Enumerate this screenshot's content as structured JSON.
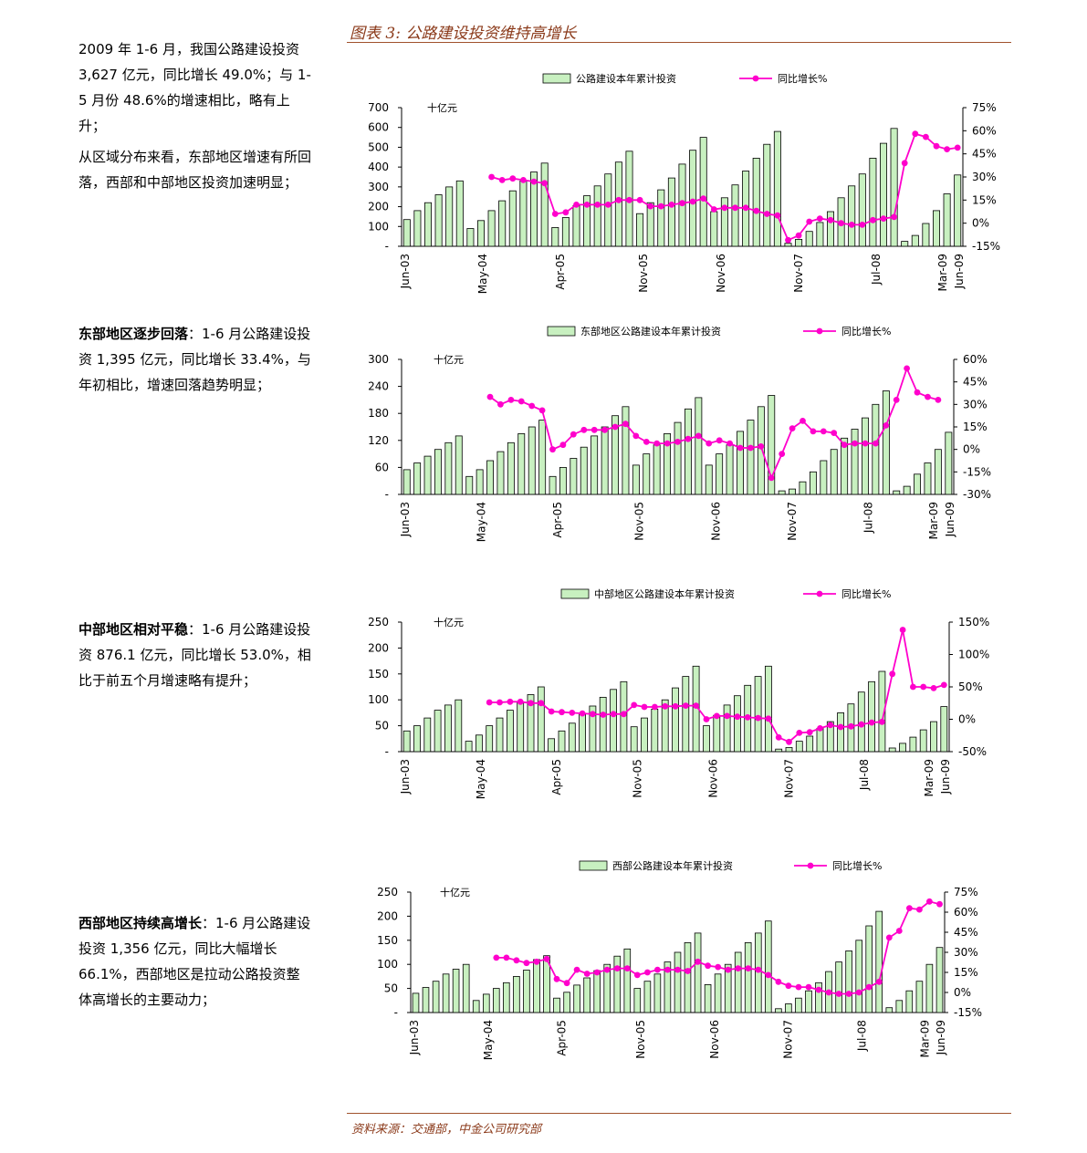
{
  "figure_title": "图表 3: 公路建设投资维持高增长",
  "source": "资料来源：交通部，中金公司研究部",
  "paragraphs": [
    {
      "lines": [
        "2009 年 1-6 月，我国公路建设投资 3,627 亿元，同比增长 49.0%；与 1-5 月份 48.6%的增速相比，略有上升；",
        "从区域分布来看，东部地区增速有所回落，西部和中部地区投资加速明显；"
      ]
    },
    {
      "bold": "东部地区逐步回落",
      "text": "：1-6 月公路建设投资 1,395 亿元，同比增长 33.4%，与年初相比，增速回落趋势明显；"
    },
    {
      "bold": "中部地区相对平稳",
      "text": "：1-6 月公路建设投资 876.1 亿元，同比增长 53.0%，相比于前五个月增速略有提升；"
    },
    {
      "bold": "西部地区持续高增长",
      "text": "：1-6 月公路建设投资 1,356 亿元，同比大幅增长 66.1%，西部地区是拉动公路投资整体高增长的主要动力；"
    }
  ],
  "colors": {
    "bar_fill": "#c8f0c0",
    "bar_stroke": "#000000",
    "line": "#ff00cc",
    "accent": "#8b3a1a"
  },
  "chart_data": [
    {
      "type": "bar",
      "legend_bar": "公路建设本年累计投资",
      "legend_line": "同比增长%",
      "unit_label": "十亿元",
      "x_ticks": [
        "Jun-03",
        "May-04",
        "Apr-05",
        "Nov-05",
        "Nov-06",
        "Nov-07",
        "Jul-08",
        "Mar-09",
        "Jun-09"
      ],
      "left_ticks": [
        "700",
        "600",
        "500",
        "400",
        "300",
        "200",
        "100",
        "-"
      ],
      "right_ticks": [
        "75%",
        "60%",
        "45%",
        "30%",
        "15%",
        "0%",
        "-15%"
      ],
      "y_left": [
        0,
        700
      ],
      "y_right": [
        -15,
        75
      ],
      "bars": [
        135,
        180,
        220,
        260,
        300,
        330,
        90,
        130,
        180,
        230,
        280,
        330,
        375,
        420,
        95,
        145,
        205,
        255,
        305,
        365,
        425,
        480,
        165,
        220,
        285,
        345,
        415,
        485,
        550,
        175,
        245,
        310,
        380,
        445,
        515,
        580,
        15,
        35,
        75,
        120,
        175,
        245,
        305,
        365,
        445,
        520,
        595,
        25,
        55,
        115,
        180,
        265,
        360
      ],
      "growth": [
        null,
        null,
        null,
        null,
        null,
        null,
        null,
        null,
        30,
        28,
        29,
        28,
        27,
        26,
        6,
        7,
        12,
        12,
        12,
        12,
        15,
        15,
        15,
        11,
        11,
        12,
        13,
        14,
        16,
        9,
        10,
        10,
        10,
        8,
        6,
        5,
        -11,
        -8,
        1,
        3,
        2,
        0,
        -1,
        -1,
        2,
        3,
        4,
        39,
        58,
        56,
        50,
        48,
        49
      ]
    },
    {
      "type": "bar",
      "legend_bar": "东部地区公路建设本年累计投资",
      "legend_line": "同比增长%",
      "unit_label": "十亿元",
      "x_ticks": [
        "Jun-03",
        "May-04",
        "Apr-05",
        "Nov-05",
        "Nov-06",
        "Nov-07",
        "Jul-08",
        "Mar-09",
        "Jun-09"
      ],
      "left_ticks": [
        "300",
        "240",
        "180",
        "120",
        "60",
        "-"
      ],
      "right_ticks": [
        "60%",
        "45%",
        "30%",
        "15%",
        "0%",
        "-15%",
        "-30%"
      ],
      "y_left": [
        0,
        300
      ],
      "y_right": [
        -30,
        60
      ],
      "bars": [
        55,
        70,
        85,
        100,
        115,
        130,
        40,
        55,
        75,
        95,
        115,
        135,
        150,
        165,
        40,
        60,
        80,
        105,
        130,
        150,
        175,
        195,
        65,
        90,
        110,
        135,
        160,
        190,
        215,
        65,
        90,
        110,
        140,
        165,
        195,
        220,
        8,
        12,
        28,
        50,
        75,
        100,
        125,
        145,
        170,
        200,
        230,
        8,
        18,
        45,
        70,
        100,
        138
      ],
      "growth": [
        null,
        null,
        null,
        null,
        null,
        null,
        null,
        null,
        35,
        30,
        33,
        32,
        29,
        26,
        0,
        3,
        10,
        13,
        13,
        13,
        15,
        17,
        9,
        5,
        4,
        4,
        5,
        7,
        9,
        4,
        6,
        4,
        1,
        1,
        2,
        -19,
        -3,
        14,
        19,
        12,
        12,
        11,
        3,
        4,
        4,
        4,
        16,
        33,
        54,
        38,
        35,
        33
      ]
    },
    {
      "type": "bar",
      "legend_bar": "中部地区公路建设本年累计投资",
      "legend_line": "同比增长%",
      "unit_label": "十亿元",
      "x_ticks": [
        "Jun-03",
        "May-04",
        "Apr-05",
        "Nov-05",
        "Nov-06",
        "Nov-07",
        "Jul-08",
        "Mar-09",
        "Jun-09"
      ],
      "left_ticks": [
        "250",
        "200",
        "150",
        "100",
        "50",
        "-"
      ],
      "right_ticks": [
        "150%",
        "100%",
        "50%",
        "0%",
        "-50%"
      ],
      "y_left": [
        0,
        250
      ],
      "y_right": [
        -50,
        150
      ],
      "bars": [
        40,
        50,
        65,
        80,
        90,
        100,
        20,
        32,
        50,
        65,
        80,
        95,
        110,
        125,
        25,
        40,
        55,
        72,
        88,
        105,
        120,
        135,
        48,
        65,
        82,
        100,
        123,
        145,
        165,
        50,
        70,
        90,
        108,
        128,
        145,
        165,
        5,
        8,
        20,
        30,
        45,
        58,
        75,
        92,
        115,
        135,
        155,
        7,
        16,
        28,
        42,
        58,
        87
      ],
      "growth": [
        null,
        null,
        null,
        null,
        null,
        null,
        null,
        null,
        26,
        26,
        27,
        27,
        25,
        25,
        12,
        11,
        10,
        9,
        8,
        7,
        8,
        8,
        22,
        19,
        19,
        20,
        20,
        21,
        21,
        0,
        5,
        5,
        4,
        3,
        2,
        1,
        -28,
        -35,
        -21,
        -20,
        -14,
        -9,
        -12,
        -11,
        -8,
        -5,
        -4,
        70,
        138,
        50,
        50,
        48,
        53
      ]
    },
    {
      "type": "bar",
      "legend_bar": "西部公路建设本年累计投资",
      "legend_line": "同比增长%",
      "unit_label": "十亿元",
      "x_ticks": [
        "Jun-03",
        "May-04",
        "Apr-05",
        "Nov-05",
        "Nov-06",
        "Nov-07",
        "Jul-08",
        "Mar-09",
        "Jun-09"
      ],
      "left_ticks": [
        "250",
        "200",
        "150",
        "100",
        "50",
        "-"
      ],
      "right_ticks": [
        "75%",
        "60%",
        "45%",
        "30%",
        "15%",
        "0%",
        "-15%"
      ],
      "y_left": [
        0,
        250
      ],
      "y_right": [
        -15,
        75
      ],
      "bars": [
        40,
        52,
        65,
        80,
        90,
        100,
        25,
        38,
        50,
        62,
        75,
        88,
        110,
        118,
        30,
        42,
        57,
        72,
        87,
        100,
        117,
        132,
        50,
        65,
        80,
        105,
        125,
        145,
        165,
        58,
        80,
        100,
        125,
        145,
        165,
        190,
        8,
        18,
        30,
        45,
        62,
        85,
        105,
        128,
        150,
        180,
        210,
        10,
        25,
        45,
        65,
        100,
        135
      ],
      "growth": [
        null,
        null,
        null,
        null,
        null,
        null,
        null,
        null,
        26,
        26,
        24,
        22,
        23,
        25,
        10,
        7,
        17,
        14,
        15,
        17,
        18,
        18,
        13,
        15,
        17,
        17,
        17,
        16,
        23,
        20,
        19,
        17,
        18,
        18,
        17,
        13,
        8,
        5,
        4,
        4,
        2,
        0,
        -1,
        -1,
        0,
        4,
        8,
        41,
        46,
        63,
        62,
        68,
        66
      ]
    }
  ]
}
